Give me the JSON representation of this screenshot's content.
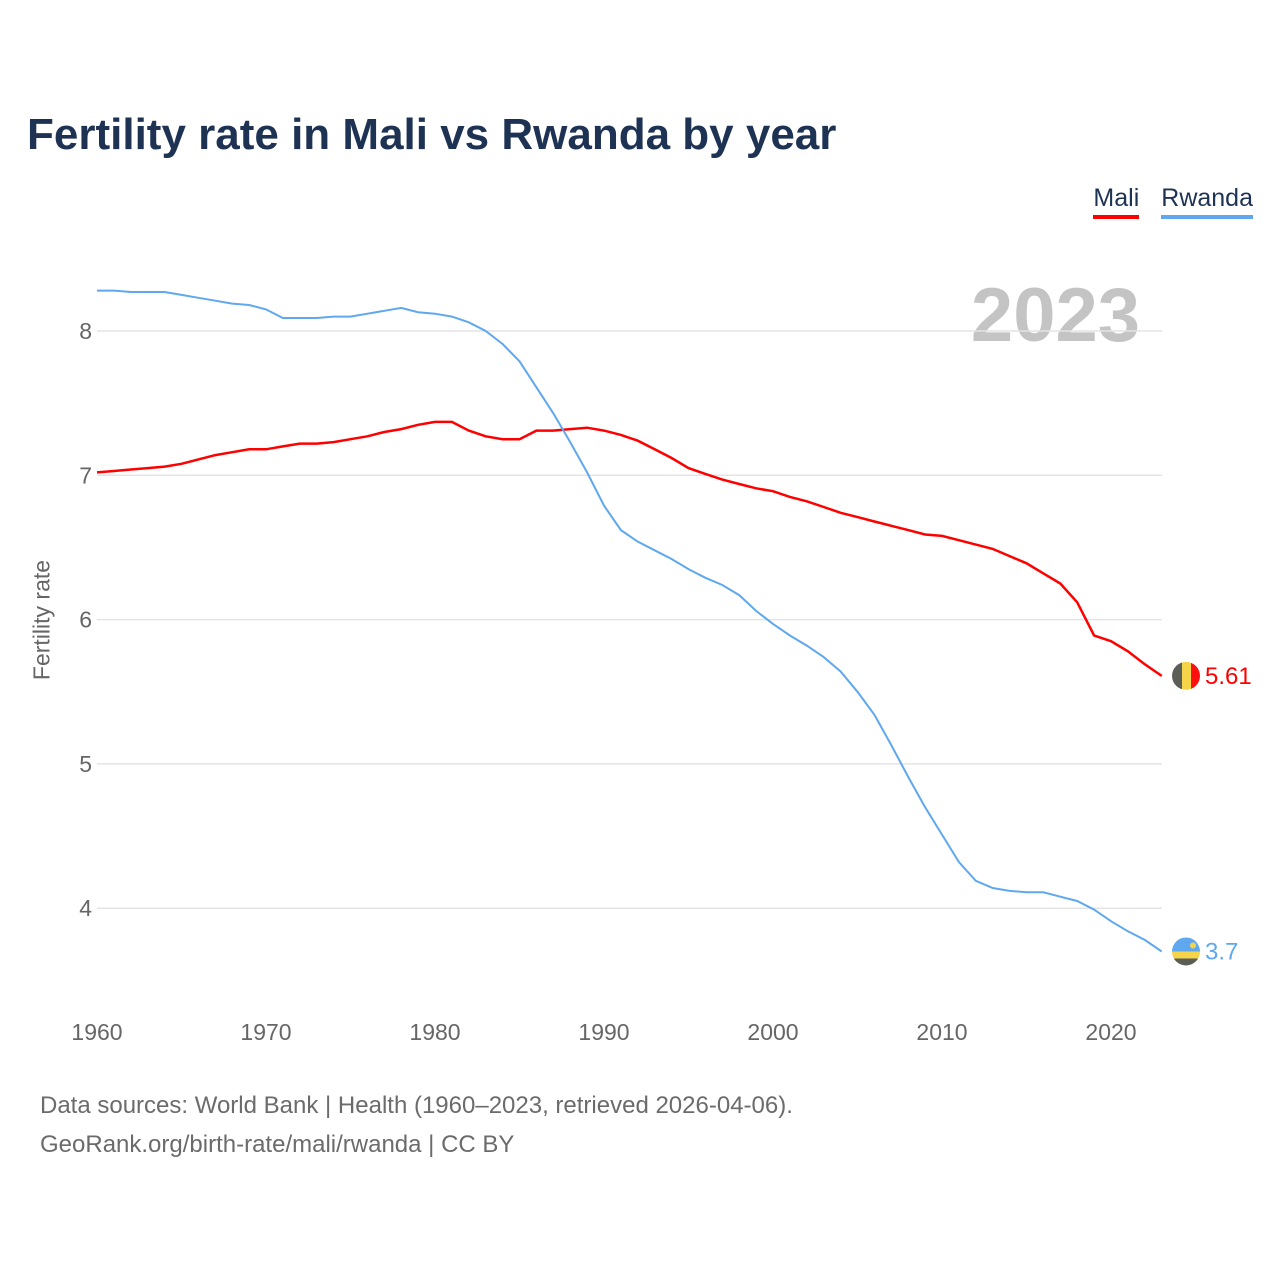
{
  "chart_data": {
    "type": "line",
    "title": "Fertility rate in Mali vs Rwanda by year",
    "xlabel": "",
    "ylabel": "Fertility rate",
    "xlim": [
      1960,
      2023
    ],
    "ylim": [
      3.5,
      8.45
    ],
    "xticks": [
      1960,
      1970,
      1980,
      1990,
      2000,
      2010,
      2020
    ],
    "yticks": [
      4,
      5,
      6,
      7,
      8
    ],
    "grid": true,
    "legend_placement": "top-right",
    "current_year_label": "2023",
    "x": [
      1960,
      1961,
      1962,
      1963,
      1964,
      1965,
      1966,
      1967,
      1968,
      1969,
      1970,
      1971,
      1972,
      1973,
      1974,
      1975,
      1976,
      1977,
      1978,
      1979,
      1980,
      1981,
      1982,
      1983,
      1984,
      1985,
      1986,
      1987,
      1988,
      1989,
      1990,
      1991,
      1992,
      1993,
      1994,
      1995,
      1996,
      1997,
      1998,
      1999,
      2000,
      2001,
      2002,
      2003,
      2004,
      2005,
      2006,
      2007,
      2008,
      2009,
      2010,
      2011,
      2012,
      2013,
      2014,
      2015,
      2016,
      2017,
      2018,
      2019,
      2020,
      2021,
      2022,
      2023
    ],
    "series": [
      {
        "name": "Mali",
        "color": "#ff0000",
        "end_label": "5.61",
        "flag": "mali-flag",
        "values": [
          7.02,
          7.03,
          7.04,
          7.05,
          7.06,
          7.08,
          7.11,
          7.14,
          7.16,
          7.18,
          7.18,
          7.2,
          7.22,
          7.22,
          7.23,
          7.25,
          7.27,
          7.3,
          7.32,
          7.35,
          7.37,
          7.37,
          7.31,
          7.27,
          7.25,
          7.25,
          7.31,
          7.31,
          7.32,
          7.33,
          7.31,
          7.28,
          7.24,
          7.18,
          7.12,
          7.05,
          7.01,
          6.97,
          6.94,
          6.91,
          6.89,
          6.85,
          6.82,
          6.78,
          6.74,
          6.71,
          6.68,
          6.65,
          6.62,
          6.59,
          6.58,
          6.55,
          6.52,
          6.49,
          6.44,
          6.39,
          6.32,
          6.25,
          6.12,
          5.89,
          5.85,
          5.78,
          5.69,
          5.61
        ]
      },
      {
        "name": "Rwanda",
        "color": "#5fa8ef",
        "end_label": "3.7",
        "flag": "rwanda-flag",
        "values": [
          8.28,
          8.28,
          8.27,
          8.27,
          8.27,
          8.25,
          8.23,
          8.21,
          8.19,
          8.18,
          8.15,
          8.09,
          8.09,
          8.09,
          8.1,
          8.1,
          8.12,
          8.14,
          8.16,
          8.13,
          8.12,
          8.1,
          8.06,
          8.0,
          7.91,
          7.79,
          7.61,
          7.43,
          7.23,
          7.02,
          6.79,
          6.62,
          6.54,
          6.48,
          6.42,
          6.35,
          6.29,
          6.24,
          6.17,
          6.06,
          5.97,
          5.89,
          5.82,
          5.74,
          5.64,
          5.5,
          5.34,
          5.13,
          4.91,
          4.7,
          4.51,
          4.32,
          4.19,
          4.14,
          4.12,
          4.11,
          4.11,
          4.08,
          4.05,
          3.99,
          3.91,
          3.84,
          3.78,
          3.7
        ]
      }
    ]
  },
  "footer": {
    "line1": "Data sources: World Bank | Health (1960–2023, retrieved 2026-04-06).",
    "line2": "GeoRank.org/birth-rate/mali/rwanda | CC BY"
  }
}
